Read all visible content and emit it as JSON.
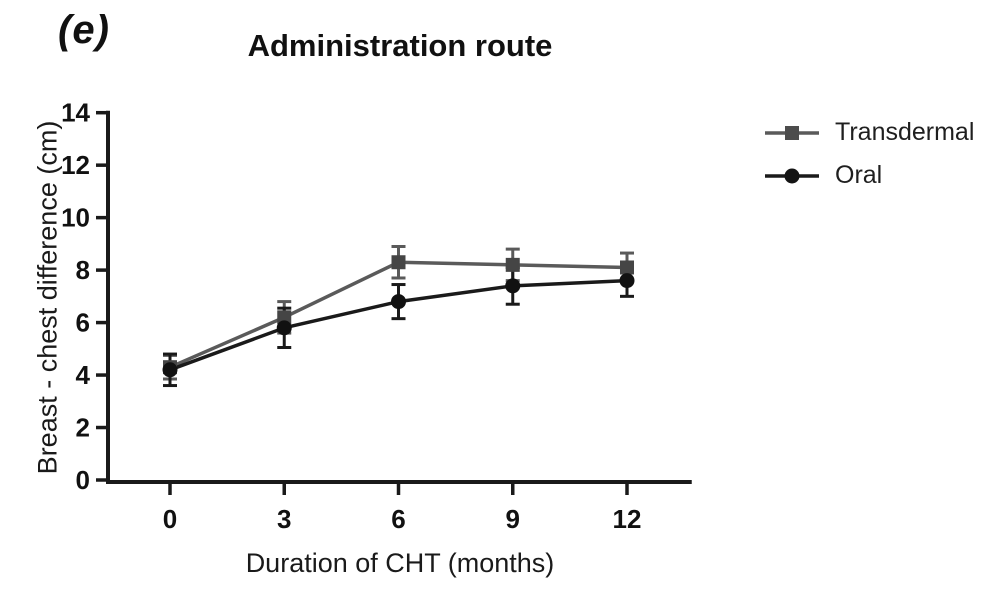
{
  "panel_label": "(e)",
  "title": "Administration route",
  "legend": {
    "items": [
      {
        "label": "Transdermal",
        "marker": "square",
        "color": "#4c4c4c",
        "line_color": "#5a5a5a"
      },
      {
        "label": "Oral",
        "marker": "circle",
        "color": "#141414",
        "line_color": "#1a1a1a"
      }
    ]
  },
  "chart_data": {
    "type": "line",
    "title": "Administration route",
    "xlabel": "Duration of CHT (months)",
    "ylabel": "Breast - chest difference (cm)",
    "x": [
      0,
      3,
      6,
      9,
      12
    ],
    "xticks": [
      0,
      3,
      6,
      9,
      12
    ],
    "yticks": [
      0,
      2,
      4,
      6,
      8,
      10,
      12,
      14
    ],
    "xlim": [
      0,
      13.7
    ],
    "ylim": [
      0,
      14
    ],
    "grid": false,
    "legend_position": "right",
    "error_bars": true,
    "series": [
      {
        "name": "Transdermal",
        "marker": "square",
        "color": "#5a5a5a",
        "marker_color": "#454545",
        "values": [
          4.3,
          6.2,
          8.3,
          8.2,
          8.1
        ],
        "errors": [
          0.45,
          0.6,
          0.6,
          0.6,
          0.55
        ]
      },
      {
        "name": "Oral",
        "marker": "circle",
        "color": "#1a1a1a",
        "marker_color": "#111111",
        "values": [
          4.2,
          5.8,
          6.8,
          7.4,
          7.6
        ],
        "errors": [
          0.6,
          0.75,
          0.65,
          0.7,
          0.6
        ]
      }
    ]
  }
}
